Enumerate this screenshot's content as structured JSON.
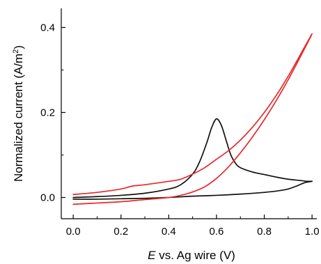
{
  "chart_data": {
    "type": "line",
    "title": "",
    "xlabel_italic": "E",
    "xlabel_rest": " vs. Ag wire (V)",
    "ylabel_main": "Normalized current (A/m",
    "ylabel_sup": "2",
    "ylabel_close": ")",
    "xlim": [
      -0.05,
      1.02
    ],
    "ylim": [
      -0.05,
      0.445
    ],
    "x_ticks": [
      0.0,
      0.2,
      0.4,
      0.6,
      0.8,
      1.0
    ],
    "x_tick_labels": [
      "0.0",
      "0.2",
      "0.4",
      "0.6",
      "0.8",
      "1.0"
    ],
    "x_minor_ticks": [
      0.1,
      0.3,
      0.5,
      0.7,
      0.9
    ],
    "y_ticks": [
      0.0,
      0.2,
      0.4
    ],
    "y_tick_labels": [
      "0.0",
      "0.2",
      "0.4"
    ],
    "y_minor_ticks": [
      0.1,
      0.3
    ],
    "grid": false,
    "legend": "none",
    "series": [
      {
        "color": "#111111",
        "x": [
          0.0,
          0.1,
          0.2,
          0.3,
          0.4,
          0.45,
          0.5,
          0.53,
          0.56,
          0.58,
          0.6,
          0.62,
          0.64,
          0.66,
          0.68,
          0.7,
          0.75,
          0.8,
          0.85,
          0.9,
          0.95,
          0.98,
          1.0,
          0.97,
          0.94,
          0.9,
          0.85,
          0.8,
          0.7,
          0.6,
          0.5,
          0.4,
          0.3,
          0.2,
          0.1,
          0.0
        ],
        "y": [
          0.0,
          0.002,
          0.005,
          0.01,
          0.02,
          0.03,
          0.055,
          0.085,
          0.13,
          0.165,
          0.185,
          0.17,
          0.135,
          0.1,
          0.08,
          0.07,
          0.06,
          0.054,
          0.048,
          0.043,
          0.04,
          0.038,
          0.038,
          0.035,
          0.028,
          0.02,
          0.015,
          0.012,
          0.008,
          0.005,
          0.003,
          0.0,
          -0.002,
          -0.003,
          -0.004,
          -0.004
        ]
      },
      {
        "color": "#e8282b",
        "x": [
          0.0,
          0.1,
          0.2,
          0.25,
          0.3,
          0.4,
          0.45,
          0.5,
          0.55,
          0.6,
          0.65,
          0.7,
          0.75,
          0.8,
          0.85,
          0.9,
          0.95,
          1.0,
          0.95,
          0.9,
          0.85,
          0.8,
          0.75,
          0.7,
          0.65,
          0.6,
          0.55,
          0.5,
          0.45,
          0.4,
          0.3,
          0.2,
          0.1,
          0.0
        ],
        "y": [
          0.007,
          0.012,
          0.02,
          0.027,
          0.03,
          0.038,
          0.043,
          0.055,
          0.07,
          0.09,
          0.11,
          0.135,
          0.165,
          0.2,
          0.24,
          0.285,
          0.335,
          0.385,
          0.33,
          0.277,
          0.228,
          0.183,
          0.142,
          0.105,
          0.072,
          0.045,
          0.025,
          0.013,
          0.005,
          0.0,
          -0.005,
          -0.01,
          -0.013,
          -0.016
        ]
      }
    ]
  }
}
